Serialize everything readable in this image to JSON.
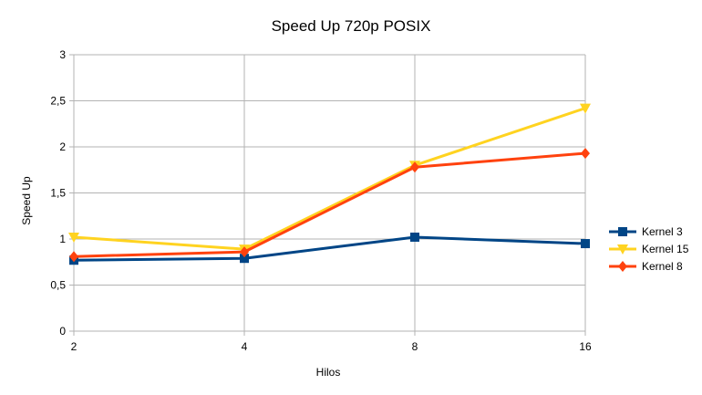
{
  "chart_data": {
    "type": "line",
    "title": "Speed Up 720p POSIX",
    "xlabel": "Hilos",
    "ylabel": "Speed Up",
    "categories": [
      "2",
      "4",
      "8",
      "16"
    ],
    "ylim": [
      0,
      3
    ],
    "y_ticks": [
      0,
      0.5,
      1,
      1.5,
      2,
      2.5,
      3
    ],
    "y_tick_labels": [
      "0",
      "0,5",
      "1",
      "1,5",
      "2",
      "2,5",
      "3"
    ],
    "grid": true,
    "legend_position": "right",
    "series": [
      {
        "name": "Kernel 3",
        "values": [
          0.77,
          0.79,
          1.02,
          0.95
        ],
        "color": "#004586",
        "marker": "square"
      },
      {
        "name": "Kernel 15",
        "values": [
          1.02,
          0.89,
          1.8,
          2.42
        ],
        "color": "#ffd320",
        "marker": "triangle-down"
      },
      {
        "name": "Kernel 8",
        "values": [
          0.81,
          0.86,
          1.78,
          1.93
        ],
        "color": "#ff420e",
        "marker": "diamond"
      }
    ]
  }
}
